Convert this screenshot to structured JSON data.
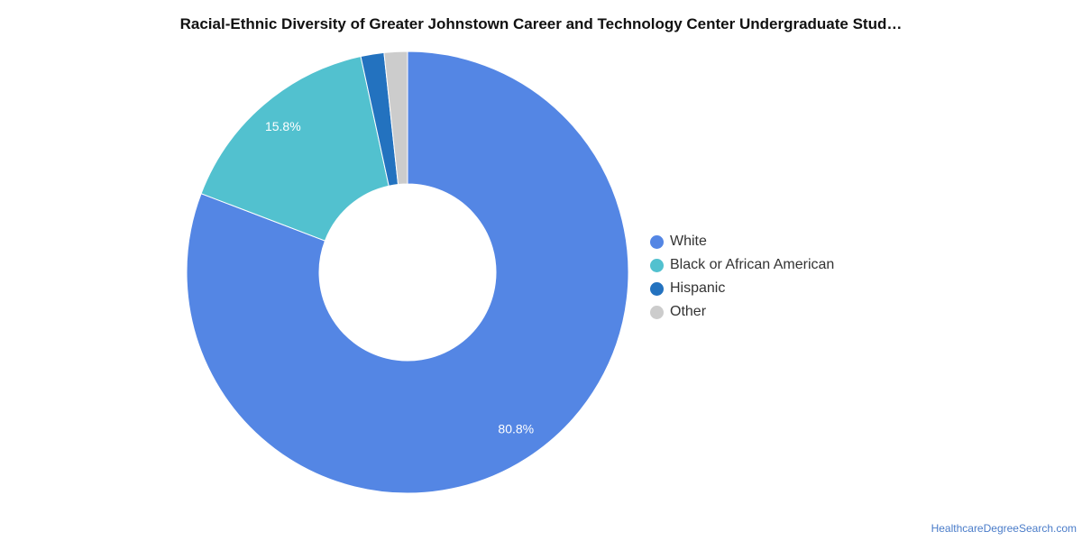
{
  "chart_data": {
    "type": "pie",
    "donut": true,
    "title": "Racial-Ethnic Diversity of Greater Johnstown Career and Technology Center Undergraduate Stud…",
    "series": [
      {
        "name": "White",
        "value": 80.8,
        "color": "#5486e4",
        "label": "80.8%"
      },
      {
        "name": "Black or African American",
        "value": 15.8,
        "color": "#52c1cf",
        "label": "15.8%"
      },
      {
        "name": "Hispanic",
        "value": 1.7,
        "color": "#2372bf",
        "label": ""
      },
      {
        "name": "Other",
        "value": 1.7,
        "color": "#cccccc",
        "label": ""
      }
    ],
    "legend_position": "right"
  },
  "watermark": "HealthcareDegreeSearch.com"
}
